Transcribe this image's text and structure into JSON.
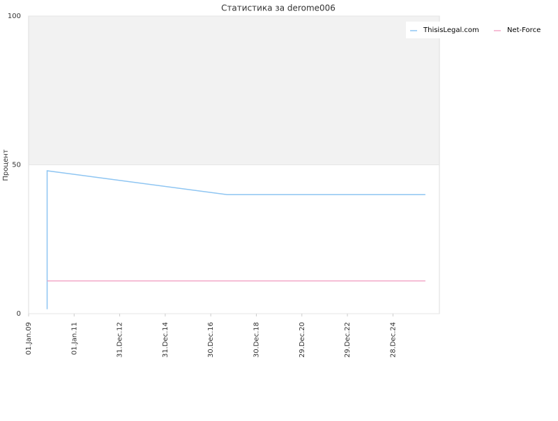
{
  "chart_data": {
    "type": "line",
    "title": "Статистика за derome006",
    "y_label": "Процент",
    "ylim": [
      0,
      100
    ],
    "yticks": [
      0,
      50,
      100
    ],
    "xlim": [
      "2009-01-01",
      "2027-01-12"
    ],
    "xticks": [
      {
        "value": "2009-01-01",
        "label": "01.Jan.09"
      },
      {
        "value": "2011-01-01",
        "label": "01.Jan.11"
      },
      {
        "value": "2012-12-31",
        "label": "31.Dec.12"
      },
      {
        "value": "2014-12-31",
        "label": "31.Dec.14"
      },
      {
        "value": "2016-12-30",
        "label": "30.Dec.16"
      },
      {
        "value": "2018-12-30",
        "label": "30.Dec.18"
      },
      {
        "value": "2020-12-29",
        "label": "29.Dec.20"
      },
      {
        "value": "2022-12-29",
        "label": "29.Dec.22"
      },
      {
        "value": "2024-12-28",
        "label": "28.Dec.24"
      }
    ],
    "band": {
      "from": 50,
      "to": 100,
      "color": "#f2f2f2"
    },
    "series": [
      {
        "name": "ThisisLegal.com",
        "color": "#8ec5f2",
        "x": [
          "2009-10-25",
          "2009-10-25",
          "2017-09-20",
          "2026-06-01"
        ],
        "values": [
          1.5,
          48,
          40,
          40
        ]
      },
      {
        "name": "Net-Force",
        "color": "#f2a8c8",
        "x": [
          "2009-10-25",
          "2026-06-01"
        ],
        "values": [
          11,
          11
        ]
      }
    ]
  }
}
